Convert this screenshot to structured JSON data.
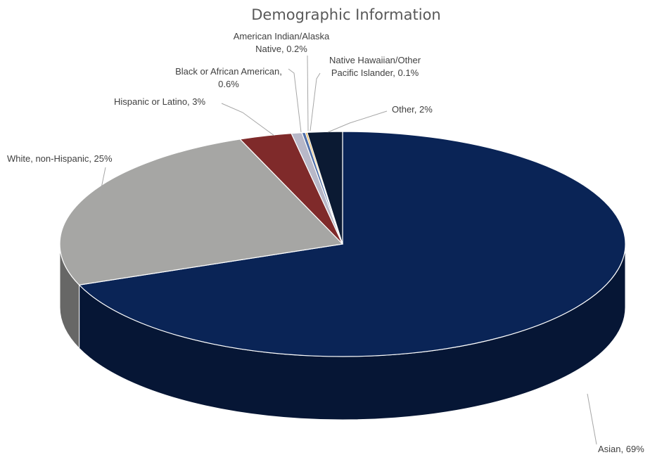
{
  "chart_data": {
    "type": "pie",
    "style": "3d",
    "title": "Demographic Information",
    "slices": [
      {
        "name": "Asian",
        "value": 69,
        "label": "Asian, 69%",
        "color": "#0a2456"
      },
      {
        "name": "White, non-Hispanic",
        "value": 25,
        "label": "White, non-Hispanic, 25%",
        "color": "#a6a6a4"
      },
      {
        "name": "Hispanic or Latino",
        "value": 3,
        "label": "Hispanic or Latino, 3%",
        "color": "#7f2a2a"
      },
      {
        "name": "Black or African American",
        "value": 0.6,
        "label_lines": [
          "Black or African American,",
          "0.6%"
        ],
        "color": "#b8b8c8"
      },
      {
        "name": "American Indian/Alaska Native",
        "value": 0.2,
        "label_lines": [
          "American Indian/Alaska",
          "Native, 0.2%"
        ],
        "color": "#4f6ea8"
      },
      {
        "name": "Native Hawaiian/Other Pacific Islander",
        "value": 0.1,
        "label_lines": [
          "Native Hawaiian/Other",
          "Pacific Islander, 0.1%"
        ],
        "color": "#e2a83a"
      },
      {
        "name": "Other",
        "value": 2,
        "label": "Other, 2%",
        "color": "#0b1a33"
      }
    ],
    "legend": "none",
    "data_labels": "outside with leader lines"
  }
}
